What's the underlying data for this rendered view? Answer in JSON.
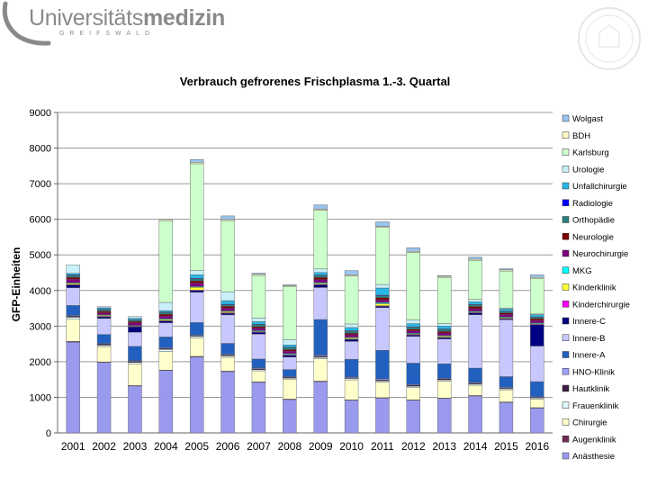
{
  "header": {
    "logo_text_regular": "Universitäts",
    "logo_text_bold": "medizin",
    "logo_subtitle": "GREIFSWALD"
  },
  "chart_data": {
    "type": "bar",
    "stacked": true,
    "title": "Verbrauch gefrorenes Frischplasma 1.-3. Quartal",
    "xlabel": "",
    "ylabel": "GFP-Einheiten",
    "ylim": [
      0,
      9000
    ],
    "yticks": [
      "0",
      "1000",
      "2000",
      "3000",
      "4000",
      "5000",
      "6000",
      "7000",
      "8000",
      "9000"
    ],
    "grid": true,
    "legend_position": "right",
    "categories": [
      "2001",
      "2002",
      "2003",
      "2004",
      "2005",
      "2006",
      "2007",
      "2008",
      "2009",
      "2010",
      "2011",
      "2012",
      "2013",
      "2014",
      "2015",
      "2016"
    ],
    "series": [
      {
        "name": "Anästhesie",
        "color": "#9999ee",
        "values": [
          2550,
          1980,
          1320,
          1750,
          2130,
          1720,
          1420,
          940,
          1440,
          920,
          980,
          920,
          970,
          1040,
          860,
          700
        ]
      },
      {
        "name": "Augenklinik",
        "color": "#6f2d55",
        "values": [
          20,
          15,
          10,
          15,
          20,
          15,
          15,
          10,
          15,
          10,
          10,
          10,
          10,
          10,
          10,
          10
        ]
      },
      {
        "name": "Chirurgie",
        "color": "#ffffcc",
        "values": [
          620,
          430,
          610,
          520,
          520,
          390,
          310,
          560,
          630,
          560,
          430,
          340,
          470,
          290,
          340,
          240
        ]
      },
      {
        "name": "Frauenklinik",
        "color": "#dff6fb",
        "values": [
          60,
          40,
          40,
          60,
          40,
          40,
          30,
          30,
          40,
          40,
          40,
          40,
          40,
          30,
          30,
          30
        ]
      },
      {
        "name": "Hautklinik",
        "color": "#3d1e44",
        "values": [
          30,
          30,
          30,
          30,
          20,
          30,
          30,
          20,
          30,
          20,
          30,
          30,
          30,
          30,
          20,
          20
        ]
      },
      {
        "name": "HNO-Klinik",
        "color": "#9aa0ff",
        "values": [
          20,
          20,
          20,
          20,
          20,
          20,
          20,
          20,
          30,
          20,
          30,
          20,
          20,
          20,
          20,
          20
        ]
      },
      {
        "name": "Innere-A",
        "color": "#2260c0",
        "values": [
          280,
          250,
          400,
          300,
          350,
          300,
          250,
          200,
          1000,
          500,
          800,
          600,
          400,
          400,
          300,
          420
        ]
      },
      {
        "name": "Innere-B",
        "color": "#c8c8ff",
        "values": [
          500,
          450,
          400,
          400,
          850,
          800,
          700,
          350,
          900,
          500,
          1200,
          750,
          700,
          1500,
          1600,
          1000
        ]
      },
      {
        "name": "Innere-C",
        "color": "#000080",
        "values": [
          80,
          50,
          150,
          50,
          50,
          50,
          50,
          50,
          80,
          60,
          40,
          40,
          40,
          50,
          30,
          600
        ]
      },
      {
        "name": "Kinderchirurgie",
        "color": "#ff00ff",
        "values": [
          10,
          10,
          10,
          10,
          10,
          10,
          10,
          10,
          10,
          10,
          10,
          10,
          10,
          10,
          10,
          10
        ]
      },
      {
        "name": "Kinderklinik",
        "color": "#ffff33",
        "values": [
          30,
          30,
          20,
          30,
          80,
          30,
          20,
          20,
          30,
          30,
          60,
          20,
          30,
          20,
          20,
          20
        ]
      },
      {
        "name": "MKG",
        "color": "#00ffff",
        "values": [
          20,
          10,
          10,
          20,
          20,
          20,
          20,
          20,
          20,
          20,
          30,
          20,
          20,
          20,
          20,
          20
        ]
      },
      {
        "name": "Neurochirurgie",
        "color": "#800080",
        "values": [
          100,
          60,
          70,
          80,
          100,
          80,
          70,
          70,
          80,
          70,
          80,
          70,
          70,
          70,
          70,
          70
        ]
      },
      {
        "name": "Neurologie",
        "color": "#7f0000",
        "values": [
          50,
          40,
          40,
          50,
          60,
          50,
          40,
          40,
          60,
          40,
          60,
          40,
          40,
          60,
          40,
          50
        ]
      },
      {
        "name": "Orthopädie",
        "color": "#2a8080",
        "values": [
          60,
          50,
          40,
          50,
          60,
          50,
          60,
          60,
          60,
          60,
          60,
          60,
          60,
          50,
          40,
          40
        ]
      },
      {
        "name": "Radiologie",
        "color": "#0000ff",
        "values": [
          10,
          10,
          10,
          10,
          10,
          10,
          10,
          10,
          10,
          10,
          10,
          10,
          10,
          10,
          10,
          10
        ]
      },
      {
        "name": "Unfallchirurgie",
        "color": "#29b6e6",
        "values": [
          40,
          40,
          40,
          40,
          100,
          100,
          70,
          60,
          70,
          90,
          200,
          90,
          80,
          70,
          60,
          60
        ]
      },
      {
        "name": "Urologie",
        "color": "#c9f0f8",
        "values": [
          240,
          30,
          50,
          230,
          120,
          250,
          100,
          150,
          100,
          100,
          100,
          100,
          70,
          70,
          20,
          20
        ]
      },
      {
        "name": "Karlsburg",
        "color": "#ccffcc",
        "values": [
          0,
          0,
          0,
          2300,
          3000,
          2000,
          1200,
          1500,
          1650,
          1350,
          1600,
          1900,
          1300,
          1100,
          1050,
          1000
        ]
      },
      {
        "name": "BDH",
        "color": "#fff8c4",
        "values": [
          0,
          0,
          0,
          30,
          40,
          30,
          30,
          20,
          30,
          30,
          30,
          30,
          30,
          30,
          30,
          30
        ]
      },
      {
        "name": "Wolgast",
        "color": "#99c4ee",
        "values": [
          0,
          0,
          0,
          0,
          80,
          100,
          30,
          20,
          120,
          120,
          130,
          100,
          20,
          60,
          30,
          70
        ]
      }
    ]
  }
}
